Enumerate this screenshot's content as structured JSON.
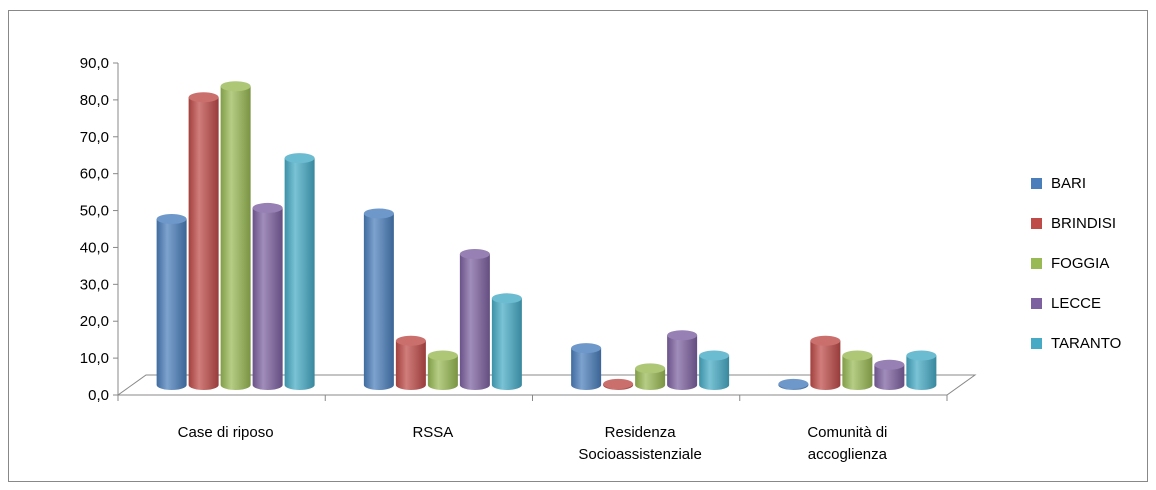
{
  "chart_data": {
    "type": "bar",
    "title": "",
    "xlabel": "",
    "ylabel": "",
    "ylim": [
      0,
      90
    ],
    "yticks": [
      "0,0",
      "10,0",
      "20,0",
      "30,0",
      "40,0",
      "50,0",
      "60,0",
      "70,0",
      "80,0",
      "90,0"
    ],
    "grid": false,
    "legend_position": "right",
    "categories": [
      [
        "Case di riposo"
      ],
      [
        "RSSA"
      ],
      [
        "Residenza",
        "Socioassistenziale"
      ],
      [
        "Comunità di",
        "accoglienza"
      ]
    ],
    "series": [
      {
        "name": "BARI",
        "color": "#4A7EBB",
        "values": [
          45.0,
          46.5,
          10.0,
          0.3
        ]
      },
      {
        "name": "BRINDISI",
        "color": "#BE4B48",
        "values": [
          78.0,
          12.0,
          0.3,
          12.0
        ]
      },
      {
        "name": "FOGGIA",
        "color": "#98B954",
        "values": [
          81.0,
          8.0,
          4.5,
          8.0
        ]
      },
      {
        "name": "LECCE",
        "color": "#7D60A0",
        "values": [
          48.0,
          35.5,
          13.5,
          5.5
        ]
      },
      {
        "name": "TARANTO",
        "color": "#46AAC5",
        "values": [
          61.5,
          23.5,
          8.0,
          8.0
        ]
      }
    ]
  }
}
